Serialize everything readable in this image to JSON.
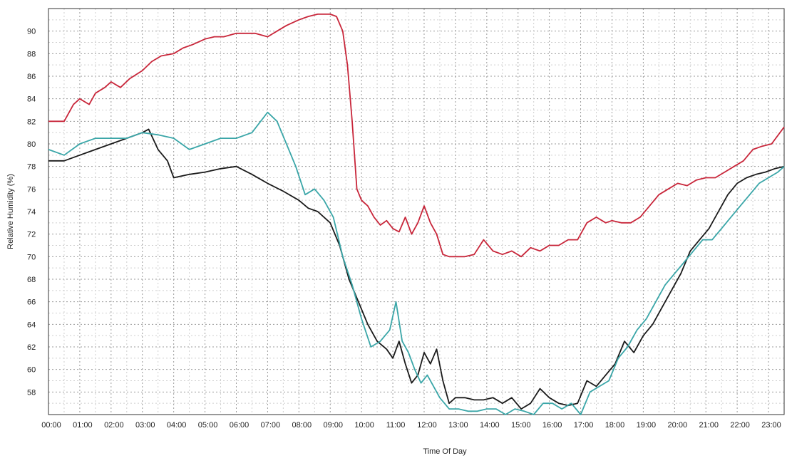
{
  "chart_data": {
    "type": "line",
    "title": "",
    "xlabel": "Time Of Day",
    "ylabel": "Relative Humidity (%)",
    "ylim": [
      56,
      92
    ],
    "xlim": [
      0,
      23.5
    ],
    "y_ticks": [
      58,
      60,
      62,
      64,
      66,
      68,
      70,
      72,
      74,
      76,
      78,
      80,
      82,
      84,
      86,
      88,
      90
    ],
    "x_ticks": [
      0,
      1,
      2,
      3,
      4,
      5,
      6,
      7,
      8,
      9,
      10,
      11,
      12,
      13,
      14,
      15,
      16,
      17,
      18,
      19,
      20,
      21,
      22,
      23
    ],
    "x_tick_labels": [
      "00:00",
      "01:00",
      "02:00",
      "03:00",
      "04:00",
      "05:00",
      "06:00",
      "07:00",
      "08:00",
      "09:00",
      "10:00",
      "11:00",
      "12:00",
      "13:00",
      "14:00",
      "15:00",
      "16:00",
      "17:00",
      "18:00",
      "19:00",
      "20:00",
      "21:00",
      "22:00",
      "23:00"
    ],
    "grid": true,
    "series": [
      {
        "color": "#c8263a",
        "x": [
          0,
          0.5,
          0.8,
          1.0,
          1.3,
          1.5,
          1.8,
          2.0,
          2.3,
          2.6,
          3.0,
          3.3,
          3.6,
          4.0,
          4.3,
          4.6,
          5.0,
          5.3,
          5.6,
          6.0,
          6.3,
          6.6,
          7.0,
          7.3,
          7.6,
          8.0,
          8.3,
          8.6,
          9.0,
          9.2,
          9.4,
          9.55,
          9.7,
          9.85,
          10.0,
          10.2,
          10.4,
          10.6,
          10.8,
          11.0,
          11.2,
          11.4,
          11.6,
          11.8,
          12.0,
          12.2,
          12.4,
          12.6,
          12.8,
          13.0,
          13.3,
          13.6,
          13.9,
          14.2,
          14.5,
          14.8,
          15.1,
          15.4,
          15.7,
          16.0,
          16.3,
          16.6,
          16.9,
          17.2,
          17.5,
          17.8,
          18.0,
          18.3,
          18.6,
          18.9,
          19.2,
          19.5,
          19.8,
          20.1,
          20.4,
          20.7,
          21.0,
          21.3,
          21.6,
          21.9,
          22.2,
          22.5,
          22.8,
          23.1,
          23.5
        ],
        "y": [
          82.0,
          82.0,
          83.5,
          84.0,
          83.5,
          84.5,
          85.0,
          85.5,
          85.0,
          85.8,
          86.5,
          87.3,
          87.8,
          88.0,
          88.5,
          88.8,
          89.3,
          89.5,
          89.5,
          89.8,
          89.8,
          89.8,
          89.5,
          90.0,
          90.5,
          91.0,
          91.3,
          91.5,
          91.5,
          91.3,
          90.0,
          87.0,
          82.0,
          76.0,
          75.0,
          74.5,
          73.5,
          72.8,
          73.2,
          72.5,
          72.2,
          73.5,
          72.0,
          73.0,
          74.5,
          73.0,
          72.0,
          70.2,
          70.0,
          70.0,
          70.0,
          70.2,
          71.5,
          70.5,
          70.2,
          70.5,
          70.0,
          70.8,
          70.5,
          71.0,
          71.0,
          71.5,
          71.5,
          73.0,
          73.5,
          73.0,
          73.2,
          73.0,
          73.0,
          73.5,
          74.5,
          75.5,
          76.0,
          76.5,
          76.3,
          76.8,
          77.0,
          77.0,
          77.5,
          78.0,
          78.5,
          79.5,
          79.8,
          80.0,
          81.5
        ]
      },
      {
        "color": "#1a1a1a",
        "x": [
          0,
          0.5,
          1.0,
          1.5,
          2.0,
          2.5,
          3.0,
          3.2,
          3.5,
          3.8,
          4.0,
          4.5,
          5.0,
          5.5,
          6.0,
          6.5,
          7.0,
          7.5,
          8.0,
          8.3,
          8.6,
          9.0,
          9.3,
          9.6,
          9.9,
          10.2,
          10.5,
          10.8,
          11.0,
          11.2,
          11.4,
          11.6,
          11.8,
          12.0,
          12.2,
          12.4,
          12.6,
          12.8,
          13.0,
          13.3,
          13.6,
          13.9,
          14.2,
          14.5,
          14.8,
          15.1,
          15.4,
          15.7,
          16.0,
          16.3,
          16.6,
          16.9,
          17.2,
          17.5,
          17.8,
          18.1,
          18.4,
          18.7,
          19.0,
          19.3,
          19.6,
          19.9,
          20.2,
          20.5,
          20.8,
          21.1,
          21.4,
          21.7,
          22.0,
          22.3,
          22.6,
          22.9,
          23.2,
          23.5
        ],
        "y": [
          78.5,
          78.5,
          79.0,
          79.5,
          80.0,
          80.5,
          81.0,
          81.3,
          79.5,
          78.5,
          77.0,
          77.3,
          77.5,
          77.8,
          78.0,
          77.3,
          76.5,
          75.8,
          75.0,
          74.3,
          74.0,
          73.0,
          71.0,
          68.0,
          66.0,
          64.0,
          62.5,
          61.8,
          61.0,
          62.5,
          60.5,
          58.8,
          59.5,
          61.5,
          60.5,
          61.8,
          59.0,
          57.0,
          57.5,
          57.5,
          57.3,
          57.3,
          57.5,
          57.0,
          57.5,
          56.5,
          57.0,
          58.3,
          57.5,
          57.0,
          56.8,
          57.0,
          59.0,
          58.5,
          59.5,
          60.5,
          62.5,
          61.5,
          63.0,
          64.0,
          65.5,
          67.0,
          68.5,
          70.5,
          71.5,
          72.5,
          74.0,
          75.5,
          76.5,
          77.0,
          77.3,
          77.5,
          77.8,
          78.0
        ]
      },
      {
        "color": "#3aa6a8",
        "x": [
          0,
          0.5,
          1.0,
          1.5,
          2.0,
          2.5,
          3.0,
          3.5,
          4.0,
          4.5,
          5.0,
          5.5,
          6.0,
          6.5,
          7.0,
          7.3,
          7.6,
          7.9,
          8.2,
          8.5,
          8.8,
          9.1,
          9.4,
          9.7,
          10.0,
          10.3,
          10.6,
          10.9,
          11.1,
          11.3,
          11.5,
          11.7,
          11.9,
          12.1,
          12.3,
          12.5,
          12.8,
          13.1,
          13.4,
          13.7,
          14.0,
          14.3,
          14.6,
          14.9,
          15.2,
          15.5,
          15.8,
          16.1,
          16.4,
          16.7,
          17.0,
          17.3,
          17.6,
          17.9,
          18.2,
          18.5,
          18.8,
          19.1,
          19.4,
          19.7,
          20.0,
          20.3,
          20.6,
          20.9,
          21.2,
          21.5,
          21.8,
          22.1,
          22.4,
          22.7,
          23.0,
          23.3,
          23.5
        ],
        "y": [
          79.5,
          79.0,
          80.0,
          80.5,
          80.5,
          80.5,
          81.0,
          80.8,
          80.5,
          79.5,
          80.0,
          80.5,
          80.5,
          81.0,
          82.8,
          82.0,
          80.0,
          78.0,
          75.5,
          76.0,
          75.0,
          73.5,
          70.0,
          67.5,
          64.5,
          62.0,
          62.5,
          63.5,
          66.0,
          62.5,
          61.5,
          60.0,
          58.8,
          59.5,
          58.5,
          57.5,
          56.5,
          56.5,
          56.3,
          56.3,
          56.5,
          56.5,
          56.0,
          56.5,
          56.3,
          56.0,
          57.0,
          57.0,
          56.5,
          57.0,
          56.0,
          58.0,
          58.5,
          59.0,
          61.0,
          62.0,
          63.5,
          64.5,
          66.0,
          67.5,
          68.5,
          69.5,
          70.5,
          71.5,
          71.5,
          72.5,
          73.5,
          74.5,
          75.5,
          76.5,
          77.0,
          77.5,
          78.0
        ]
      }
    ]
  }
}
